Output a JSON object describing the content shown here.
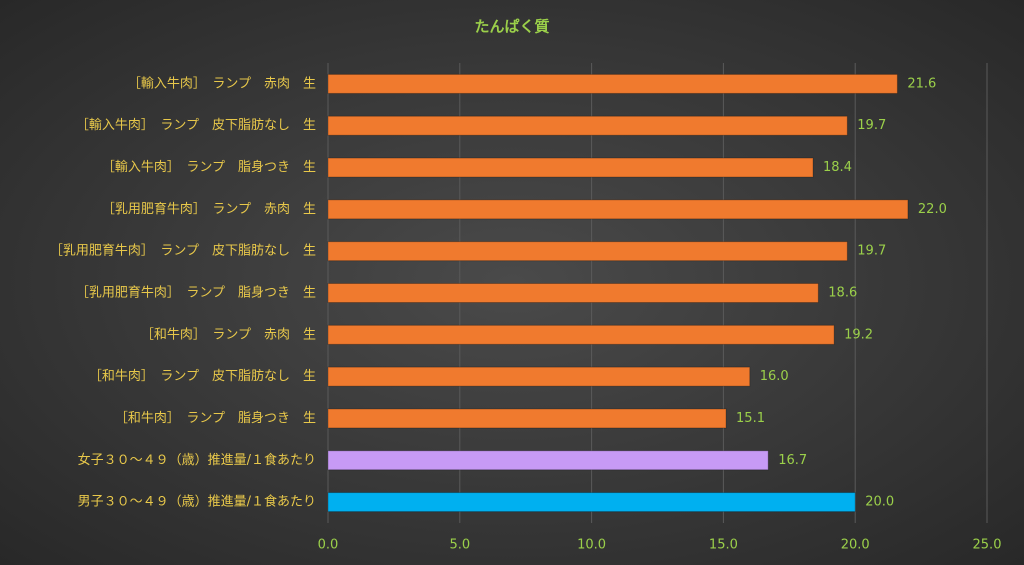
{
  "chart_data": {
    "type": "bar",
    "orientation": "horizontal",
    "title": "たんぱく質",
    "categories": [
      "［輸入牛肉］　ランプ　赤肉　生",
      "［輸入牛肉］　ランプ　皮下脂肪なし　生",
      "［輸入牛肉］　ランプ　脂身つき　生",
      "［乳用肥育牛肉］　ランプ　赤肉　生",
      "［乳用肥育牛肉］　ランプ　皮下脂肪なし　生",
      "［乳用肥育牛肉］　ランプ　脂身つき　生",
      "［和牛肉］　ランプ　赤肉　生",
      "［和牛肉］　ランプ　皮下脂肪なし　生",
      "［和牛肉］　ランプ　脂身つき　生",
      "女子３０～４９（歳）推進量/１食あたり",
      "男子３０～４９（歳）推進量/１食あたり"
    ],
    "values": [
      21.6,
      19.7,
      18.4,
      22.0,
      19.7,
      18.6,
      19.2,
      16.0,
      15.1,
      16.7,
      20.0
    ],
    "value_labels": [
      "21.6",
      "19.7",
      "18.4",
      "22.0",
      "19.7",
      "18.6",
      "19.2",
      "16.0",
      "15.1",
      "16.7",
      "20.0"
    ],
    "colors": [
      "#f07a2e",
      "#f07a2e",
      "#f07a2e",
      "#f07a2e",
      "#f07a2e",
      "#f07a2e",
      "#f07a2e",
      "#f07a2e",
      "#f07a2e",
      "#c79af5",
      "#00b0f0"
    ],
    "xlim": [
      0,
      25
    ],
    "xticks": [
      {
        "value": 0,
        "label": "0.0"
      },
      {
        "value": 5,
        "label": "5.0"
      },
      {
        "value": 10,
        "label": "10.0"
      },
      {
        "value": 15,
        "label": "15.0"
      },
      {
        "value": 20,
        "label": "20.0"
      },
      {
        "value": 25,
        "label": "25.0"
      }
    ],
    "grid": true
  }
}
